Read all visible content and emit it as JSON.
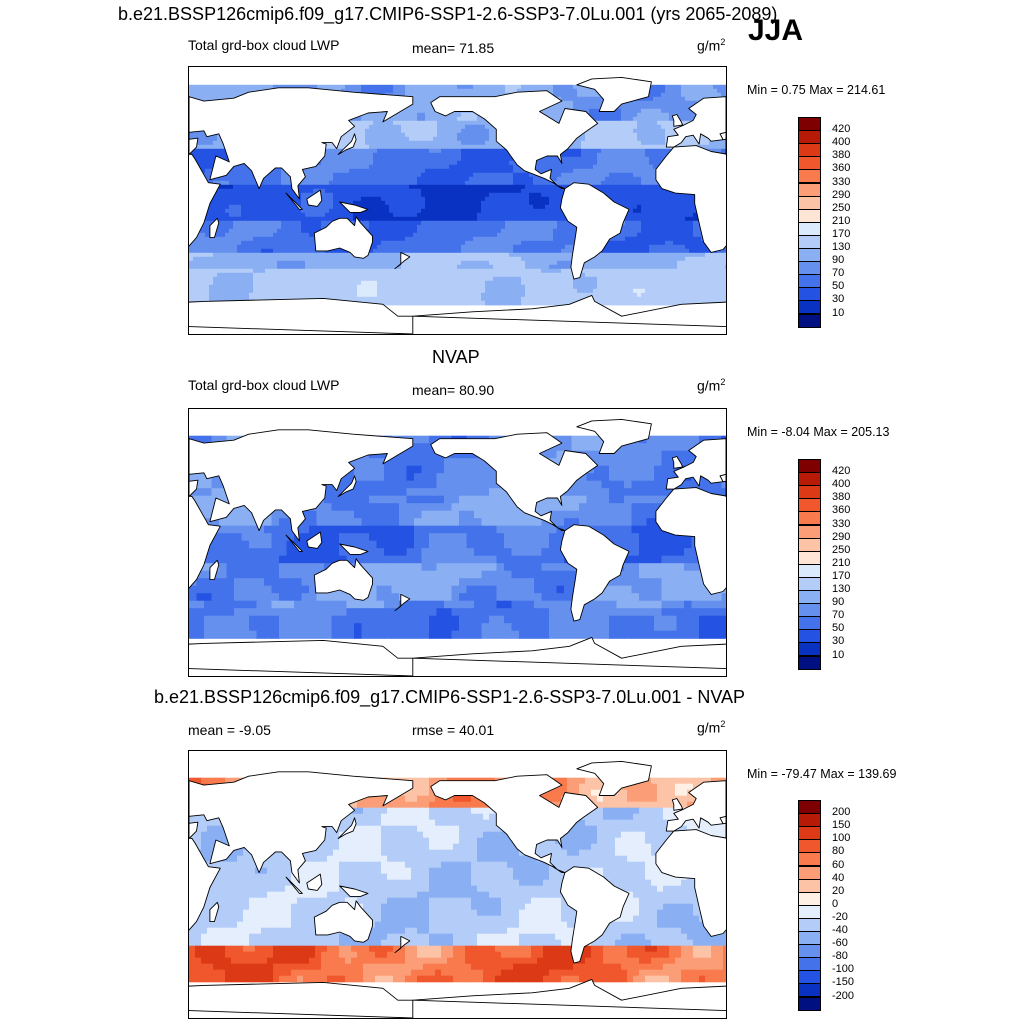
{
  "header": {
    "title": "b.e21.BSSP126cmip6.f09_g17.CMIP6-SSP1-2.6-SSP3-7.0Lu.001 (yrs 2065-2089)",
    "season": "JJA"
  },
  "panels": [
    {
      "id": "model",
      "subtitle": "",
      "left_label": "Total grd-box cloud LWP",
      "center_label": "mean=  71.85",
      "units_base": "g/m",
      "units_exp": "2",
      "minmax": "Min =   0.75 Max = 214.61",
      "colorbar": {
        "labels": [
          "420",
          "400",
          "380",
          "360",
          "330",
          "290",
          "250",
          "210",
          "170",
          "130",
          "90",
          "70",
          "50",
          "30",
          "10"
        ],
        "colors": [
          "#7f0000",
          "#b81a08",
          "#dc3a17",
          "#f0572c",
          "#f97a4c",
          "#fb9e78",
          "#fcc3a6",
          "#fee5d5",
          "#dbeafc",
          "#b3cdf8",
          "#8aaff2",
          "#6690ee",
          "#4472ea",
          "#2452e2",
          "#0a32c2",
          "#001080"
        ]
      },
      "map_type": "seq",
      "mean_value": 71.85
    },
    {
      "id": "obs",
      "subtitle": "NVAP",
      "left_label": "Total grd-box cloud LWP",
      "center_label": "mean=  80.90",
      "units_base": "g/m",
      "units_exp": "2",
      "minmax": "Min =  -8.04 Max = 205.13",
      "colorbar": {
        "labels": [
          "420",
          "400",
          "380",
          "360",
          "330",
          "290",
          "250",
          "210",
          "170",
          "130",
          "90",
          "70",
          "50",
          "30",
          "10"
        ],
        "colors": [
          "#7f0000",
          "#b81a08",
          "#dc3a17",
          "#f0572c",
          "#f97a4c",
          "#fb9e78",
          "#fcc3a6",
          "#fee5d5",
          "#dbeafc",
          "#b3cdf8",
          "#8aaff2",
          "#6690ee",
          "#4472ea",
          "#2452e2",
          "#0a32c2",
          "#001080"
        ]
      },
      "map_type": "obs",
      "mean_value": 80.9
    },
    {
      "id": "diff",
      "subtitle": "b.e21.BSSP126cmip6.f09_g17.CMIP6-SSP1-2.6-SSP3-7.0Lu.001 - NVAP",
      "left_label": "mean =  -9.05",
      "center_label": "rmse =  40.01",
      "units_base": "g/m",
      "units_exp": "2",
      "minmax": "Min = -79.47 Max = 139.69",
      "colorbar": {
        "labels": [
          "200",
          "150",
          "100",
          "80",
          "60",
          "40",
          "20",
          "0",
          "-20",
          "-40",
          "-60",
          "-80",
          "-100",
          "-150",
          "-200"
        ],
        "colors": [
          "#7f0000",
          "#b81a08",
          "#dc3a17",
          "#f0572c",
          "#f97a4c",
          "#fb9e78",
          "#fcc3a6",
          "#fff0e6",
          "#e4eefc",
          "#b3cdf8",
          "#8aaff2",
          "#6690ee",
          "#4472ea",
          "#2452e2",
          "#0a32c2",
          "#001080"
        ]
      },
      "map_type": "diff",
      "mean_value": -9.05
    }
  ]
}
